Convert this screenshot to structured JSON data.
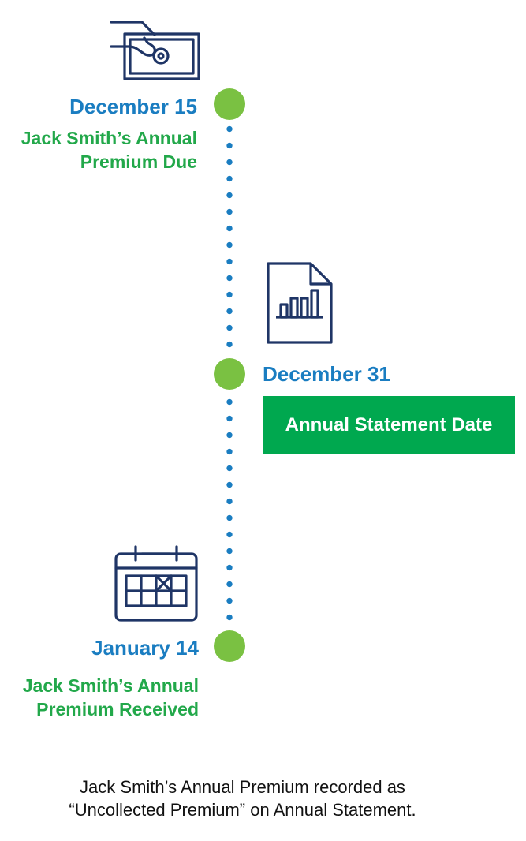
{
  "colors": {
    "date_blue": "#1a7dc1",
    "description_green": "#22a84a",
    "milestone_dot": "#7ac142",
    "statement_box": "#00a84f",
    "icon_navy": "#1f3566"
  },
  "milestones": [
    {
      "date": "December 15",
      "description": [
        "Jack Smith’s Annual",
        "Premium Due"
      ],
      "icon": "money-hand-icon"
    },
    {
      "date": "December 31",
      "label": "Annual Statement Date",
      "icon": "report-chart-icon"
    },
    {
      "date": "January 14",
      "description": [
        "Jack Smith’s Annual",
        "Premium Received"
      ],
      "icon": "calendar-icon"
    }
  ],
  "caption": [
    "Jack Smith’s Annual Premium recorded as",
    "“Uncollected Premium” on Annual Statement."
  ]
}
